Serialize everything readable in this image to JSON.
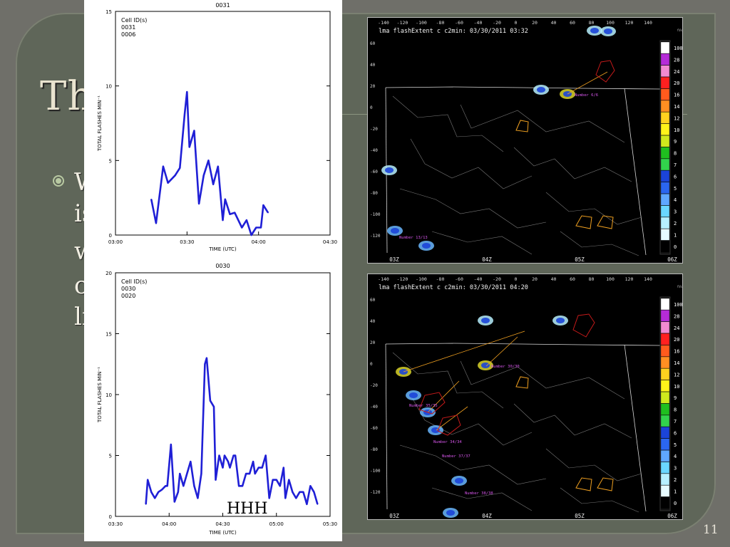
{
  "slide": {
    "title": "Th",
    "lines": [
      "W",
      "is",
      "w",
      "c",
      "li"
    ],
    "page_number": "11",
    "overlay_label": "HHH"
  },
  "chart_data": [
    {
      "type": "line",
      "title": "0031",
      "legend": [
        "Cell ID(s)",
        "0031",
        "0006"
      ],
      "xlabel": "TIME (UTC)",
      "ylabel": "TOTAL FLASHES MIN⁻¹",
      "x_ticks": [
        "03:00",
        "03:30",
        "04:00",
        "04:30"
      ],
      "x_tick_minutes": [
        0,
        30,
        60,
        90
      ],
      "xlim": [
        0,
        90
      ],
      "ylim": [
        0,
        15
      ],
      "y_ticks": [
        0,
        5,
        10,
        15
      ],
      "grid": false,
      "color": "#1f1fd6",
      "series": [
        {
          "x": [
            15,
            17,
            20,
            22,
            25,
            27,
            29,
            30,
            31,
            33,
            35,
            37,
            39,
            41,
            43,
            45,
            46,
            48,
            50,
            53,
            55,
            57,
            59,
            61,
            62,
            64
          ],
          "y": [
            2.4,
            0.8,
            4.6,
            3.5,
            4.0,
            4.5,
            8.1,
            9.6,
            5.9,
            7.0,
            2.1,
            4.0,
            5.0,
            3.4,
            4.6,
            1.0,
            2.4,
            1.4,
            1.5,
            0.5,
            1.0,
            0.0,
            0.5,
            0.5,
            2.0,
            1.5
          ]
        }
      ]
    },
    {
      "type": "line",
      "title": "0030",
      "legend": [
        "Cell ID(s)",
        "0030",
        "0020"
      ],
      "xlabel": "TIME (UTC)",
      "ylabel": "TOTAL FLASHES MIN⁻¹",
      "x_ticks": [
        "03:30",
        "04:00",
        "04:30",
        "05:00",
        "05:30"
      ],
      "x_tick_minutes": [
        0,
        30,
        60,
        90,
        120
      ],
      "xlim": [
        0,
        120
      ],
      "ylim": [
        0,
        20
      ],
      "y_ticks": [
        0,
        5,
        10,
        15,
        20
      ],
      "grid": false,
      "color": "#1f1fd6",
      "series": [
        {
          "x": [
            17,
            18,
            20,
            22,
            24,
            26,
            28,
            29,
            31,
            33,
            35,
            36,
            38,
            40,
            42,
            44,
            46,
            48,
            50,
            51,
            53,
            55,
            56,
            58,
            60,
            61,
            63,
            64,
            66,
            67,
            69,
            71,
            73,
            75,
            77,
            78,
            80,
            82,
            84,
            86,
            88,
            90,
            92,
            94,
            95,
            97,
            99,
            101,
            103,
            105,
            107,
            109,
            111,
            113
          ],
          "y": [
            1.0,
            3.0,
            2.0,
            1.5,
            2.0,
            2.2,
            2.5,
            2.5,
            5.9,
            1.2,
            2.0,
            3.5,
            2.5,
            3.5,
            4.5,
            2.5,
            1.5,
            3.5,
            12.5,
            13.0,
            9.5,
            9.0,
            3.0,
            5.0,
            4.0,
            5.0,
            4.5,
            4.0,
            5.0,
            5.0,
            2.5,
            2.5,
            3.5,
            3.5,
            4.5,
            3.5,
            4.0,
            4.0,
            5.0,
            1.5,
            3.0,
            3.0,
            2.5,
            4.0,
            1.5,
            3.0,
            2.0,
            1.5,
            2.0,
            2.0,
            1.0,
            2.5,
            2.0,
            1.0
          ]
        }
      ]
    }
  ],
  "radar": {
    "top": {
      "title": "lma flashExtent c c2min: 03/30/2011 03:32",
      "cell_label": "Number 6/6",
      "cell_label_sw": "Number 13/13",
      "bottom_ticks": [
        "03Z",
        "04Z",
        "05Z",
        "06Z"
      ]
    },
    "bottom": {
      "title": "lma flashExtent c c2min: 03/30/2011 04:20",
      "cell_label": "Number 30/30",
      "cell_labels_sw": [
        "Number 35/35",
        "Number 34/34",
        "Number 37/37",
        "Number 38/38"
      ],
      "bottom_ticks": [
        "03Z",
        "04Z",
        "05Z",
        "06Z"
      ]
    },
    "x_ticks": [
      "-140",
      "-120",
      "-100",
      "-80",
      "-60",
      "-40",
      "-20",
      "0",
      "20",
      "40",
      "60",
      "80",
      "100",
      "120",
      "140"
    ],
    "y_ticks": [
      "60",
      "40",
      "20",
      "0",
      "-20",
      "-40",
      "-60",
      "-80",
      "-100",
      "-120"
    ],
    "colorbar_labels": [
      "100",
      "28",
      "24",
      "20",
      "16",
      "14",
      "12",
      "10",
      "9",
      "8",
      "7",
      "6",
      "5",
      "4",
      "3",
      "2",
      "1",
      "0"
    ],
    "colorbar_colors": [
      "#ffffff",
      "#b52bd8",
      "#f28ad2",
      "#ff2020",
      "#ff5a1d",
      "#ff8f22",
      "#ffd21f",
      "#fff31a",
      "#cfe81d",
      "#1fbf1f",
      "#32d34c",
      "#1b44d8",
      "#2b66f0",
      "#5fa7ff",
      "#6ad7ff",
      "#b7f0ff",
      "#e7fbff",
      "#000000"
    ],
    "unit_label": "fl/km2/2min"
  }
}
